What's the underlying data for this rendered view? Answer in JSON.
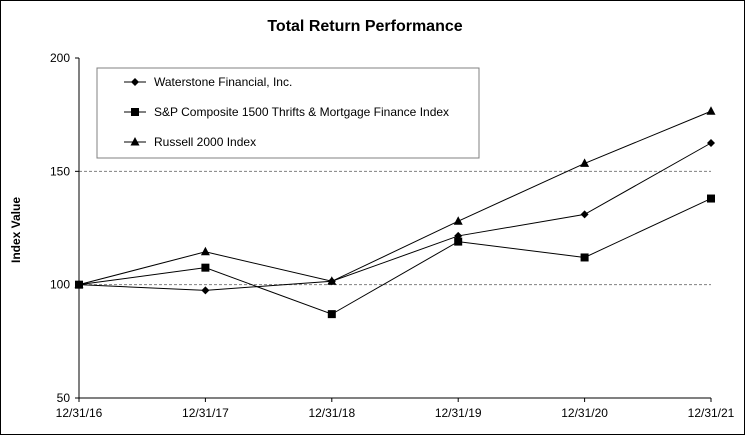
{
  "chart_data": {
    "type": "line",
    "title": "Total Return Performance",
    "ylabel": "Index Value",
    "xlabel": "",
    "x": [
      "12/31/16",
      "12/31/17",
      "12/31/18",
      "12/31/19",
      "12/31/20",
      "12/31/21"
    ],
    "ylim": [
      50,
      200
    ],
    "yticks": [
      50,
      100,
      150,
      200
    ],
    "grid": "horizontal dashed at 100 and 150",
    "legend_position": "top-left inside plot",
    "series": [
      {
        "name": "Waterstone Financial, Inc.",
        "marker": "diamond",
        "values": [
          100,
          97.5,
          101.5,
          121.5,
          131,
          162.5
        ]
      },
      {
        "name": "S&P Composite 1500 Thrifts & Mortgage Finance Index",
        "marker": "square",
        "values": [
          100,
          107.5,
          87,
          119,
          112,
          138
        ]
      },
      {
        "name": "Russell 2000 Index",
        "marker": "triangle",
        "values": [
          100,
          114.5,
          101.5,
          128,
          153.5,
          176.5
        ]
      }
    ],
    "colors": {
      "line": "#000000",
      "grid": "#808080",
      "background": "#ffffff"
    }
  }
}
